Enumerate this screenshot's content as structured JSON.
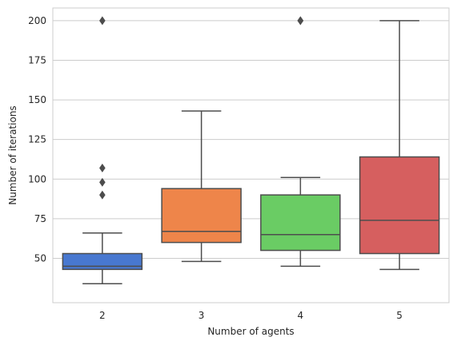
{
  "chart_data": {
    "type": "box",
    "title": "",
    "xlabel": "Number of agents",
    "ylabel": "Number of iterations",
    "categories": [
      "2",
      "3",
      "4",
      "5"
    ],
    "ylim": [
      22,
      208
    ],
    "yticks": [
      50,
      75,
      100,
      125,
      150,
      175,
      200
    ],
    "grid": true,
    "boxes": [
      {
        "category": "2",
        "color": "#4878d0",
        "whisker_low": 34,
        "q1": 43,
        "median": 45,
        "q3": 53,
        "whisker_high": 66,
        "outliers": [
          90,
          98,
          107,
          200
        ]
      },
      {
        "category": "3",
        "color": "#ee854a",
        "whisker_low": 48,
        "q1": 60,
        "median": 67,
        "q3": 94,
        "whisker_high": 143,
        "outliers": []
      },
      {
        "category": "4",
        "color": "#6acc64",
        "whisker_low": 45,
        "q1": 55,
        "median": 65,
        "q3": 90,
        "whisker_high": 101,
        "outliers": [
          200,
          200
        ]
      },
      {
        "category": "5",
        "color": "#d65f5f",
        "whisker_low": 43,
        "q1": 53,
        "median": 74,
        "q3": 114,
        "whisker_high": 200,
        "outliers": []
      }
    ]
  }
}
